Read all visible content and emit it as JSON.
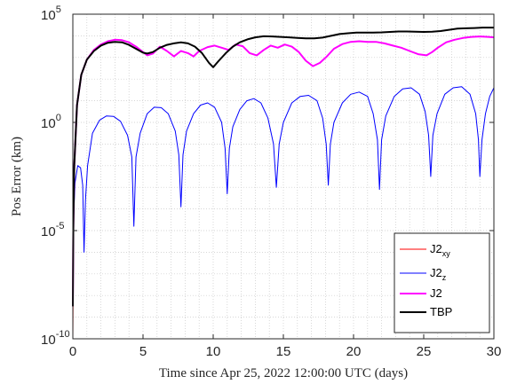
{
  "chart_data": {
    "type": "line",
    "xlabel": "Time since Apr 25, 2022 12:00:00 UTC (days)",
    "ylabel": "Pos Error (km)",
    "xlim": [
      0,
      30
    ],
    "ylim_exponents": [
      -10,
      5
    ],
    "yscale": "log",
    "x_ticks": [
      "0",
      "5",
      "10",
      "15",
      "20",
      "25",
      "30"
    ],
    "x_tick_values": [
      0,
      5,
      10,
      15,
      20,
      25,
      30
    ],
    "y_ticks": [
      {
        "base": "10",
        "exp": "-10",
        "value_exp": -10
      },
      {
        "base": "10",
        "exp": "-5",
        "value_exp": -5
      },
      {
        "base": "10",
        "exp": "0",
        "value_exp": 0
      },
      {
        "base": "10",
        "exp": "5",
        "value_exp": 5
      }
    ],
    "grid": "minor-dotted",
    "legend_position": "bottom-right",
    "series": [
      {
        "key": "j2xy",
        "name": "J2",
        "name_sub": "xy",
        "color": "#ff0000",
        "stroke": 1,
        "points": [
          [
            0.0,
            -10.0
          ],
          [
            0.01,
            -8.5
          ],
          [
            0.03,
            -7.2
          ]
        ]
      },
      {
        "key": "j2z",
        "name": "J2",
        "name_sub": "z",
        "color": "#0000ff",
        "stroke": 1,
        "points": [
          [
            0.0,
            -7.5
          ],
          [
            0.05,
            -4.5
          ],
          [
            0.15,
            -2.8
          ],
          [
            0.35,
            -2.0
          ],
          [
            0.55,
            -2.1
          ],
          [
            0.7,
            -2.9
          ],
          [
            0.8,
            -6.0
          ],
          [
            0.9,
            -3.6
          ],
          [
            1.05,
            -2.0
          ],
          [
            1.4,
            -0.5
          ],
          [
            1.9,
            0.1
          ],
          [
            2.4,
            0.3
          ],
          [
            2.9,
            0.28
          ],
          [
            3.4,
            0.05
          ],
          [
            3.9,
            -0.6
          ],
          [
            4.2,
            -1.6
          ],
          [
            4.35,
            -4.8
          ],
          [
            4.5,
            -1.6
          ],
          [
            4.8,
            -0.5
          ],
          [
            5.3,
            0.4
          ],
          [
            5.8,
            0.7
          ],
          [
            6.3,
            0.68
          ],
          [
            6.8,
            0.4
          ],
          [
            7.3,
            -0.4
          ],
          [
            7.55,
            -1.5
          ],
          [
            7.7,
            -3.9
          ],
          [
            7.85,
            -1.5
          ],
          [
            8.1,
            -0.4
          ],
          [
            8.6,
            0.4
          ],
          [
            9.1,
            0.8
          ],
          [
            9.6,
            0.9
          ],
          [
            10.1,
            0.7
          ],
          [
            10.6,
            0.0
          ],
          [
            10.85,
            -1.2
          ],
          [
            11.0,
            -3.3
          ],
          [
            11.15,
            -1.2
          ],
          [
            11.4,
            -0.2
          ],
          [
            11.9,
            0.6
          ],
          [
            12.4,
            1.0
          ],
          [
            12.9,
            1.1
          ],
          [
            13.4,
            0.9
          ],
          [
            13.9,
            0.2
          ],
          [
            14.3,
            -1.0
          ],
          [
            14.5,
            -3.0
          ],
          [
            14.7,
            -1.0
          ],
          [
            15.0,
            0.0
          ],
          [
            15.6,
            0.9
          ],
          [
            16.2,
            1.2
          ],
          [
            16.8,
            1.25
          ],
          [
            17.4,
            1.0
          ],
          [
            17.8,
            0.2
          ],
          [
            18.05,
            -1.0
          ],
          [
            18.2,
            -2.9
          ],
          [
            18.35,
            -1.0
          ],
          [
            18.6,
            0.0
          ],
          [
            19.2,
            0.9
          ],
          [
            19.8,
            1.3
          ],
          [
            20.4,
            1.4
          ],
          [
            21.0,
            1.2
          ],
          [
            21.4,
            0.4
          ],
          [
            21.7,
            -0.8
          ],
          [
            21.85,
            -3.1
          ],
          [
            22.0,
            -0.8
          ],
          [
            22.3,
            0.3
          ],
          [
            22.9,
            1.2
          ],
          [
            23.5,
            1.55
          ],
          [
            24.1,
            1.6
          ],
          [
            24.7,
            1.3
          ],
          [
            25.1,
            0.5
          ],
          [
            25.35,
            -0.6
          ],
          [
            25.5,
            -2.5
          ],
          [
            25.65,
            -0.6
          ],
          [
            25.95,
            0.4
          ],
          [
            26.5,
            1.3
          ],
          [
            27.1,
            1.6
          ],
          [
            27.7,
            1.65
          ],
          [
            28.3,
            1.3
          ],
          [
            28.7,
            0.4
          ],
          [
            28.9,
            -0.8
          ],
          [
            29.0,
            -2.5
          ],
          [
            29.15,
            -0.8
          ],
          [
            29.4,
            0.4
          ],
          [
            29.7,
            1.2
          ],
          [
            30.0,
            1.6
          ]
        ]
      },
      {
        "key": "j2",
        "name": "J2",
        "name_sub": "",
        "color": "#ff00ff",
        "stroke": 2,
        "points": [
          [
            0.0,
            -8.5
          ],
          [
            0.03,
            -5.0
          ],
          [
            0.1,
            -2.0
          ],
          [
            0.3,
            0.8
          ],
          [
            0.6,
            2.2
          ],
          [
            1.0,
            2.9
          ],
          [
            1.5,
            3.35
          ],
          [
            2.0,
            3.6
          ],
          [
            2.5,
            3.75
          ],
          [
            3.0,
            3.82
          ],
          [
            3.5,
            3.8
          ],
          [
            4.0,
            3.7
          ],
          [
            4.5,
            3.5
          ],
          [
            5.0,
            3.25
          ],
          [
            5.3,
            3.1
          ],
          [
            5.7,
            3.18
          ],
          [
            6.2,
            3.5
          ],
          [
            6.7,
            3.3
          ],
          [
            7.2,
            3.05
          ],
          [
            7.7,
            3.3
          ],
          [
            8.2,
            3.2
          ],
          [
            8.6,
            3.05
          ],
          [
            9.0,
            3.3
          ],
          [
            9.6,
            3.48
          ],
          [
            10.1,
            3.55
          ],
          [
            10.6,
            3.45
          ],
          [
            11.1,
            3.35
          ],
          [
            11.6,
            3.6
          ],
          [
            12.1,
            3.52
          ],
          [
            12.6,
            3.2
          ],
          [
            13.1,
            3.1
          ],
          [
            13.6,
            3.35
          ],
          [
            14.1,
            3.55
          ],
          [
            14.6,
            3.45
          ],
          [
            15.1,
            3.6
          ],
          [
            15.6,
            3.5
          ],
          [
            16.1,
            3.25
          ],
          [
            16.6,
            2.85
          ],
          [
            17.1,
            2.6
          ],
          [
            17.6,
            2.75
          ],
          [
            18.1,
            3.05
          ],
          [
            18.6,
            3.4
          ],
          [
            19.2,
            3.62
          ],
          [
            19.8,
            3.72
          ],
          [
            20.4,
            3.75
          ],
          [
            21.0,
            3.72
          ],
          [
            21.6,
            3.72
          ],
          [
            22.2,
            3.65
          ],
          [
            22.8,
            3.55
          ],
          [
            23.4,
            3.45
          ],
          [
            24.0,
            3.3
          ],
          [
            24.6,
            3.15
          ],
          [
            25.2,
            3.1
          ],
          [
            25.6,
            3.25
          ],
          [
            26.0,
            3.45
          ],
          [
            26.6,
            3.7
          ],
          [
            27.2,
            3.82
          ],
          [
            27.8,
            3.9
          ],
          [
            28.4,
            3.95
          ],
          [
            29.0,
            3.97
          ],
          [
            29.6,
            3.95
          ],
          [
            30.0,
            3.93
          ]
        ]
      },
      {
        "key": "tbp",
        "name": "TBP",
        "name_sub": "",
        "color": "#000000",
        "stroke": 2,
        "points": [
          [
            0.0,
            -8.5
          ],
          [
            0.03,
            -5.0
          ],
          [
            0.1,
            -2.0
          ],
          [
            0.3,
            0.8
          ],
          [
            0.6,
            2.2
          ],
          [
            1.0,
            2.9
          ],
          [
            1.5,
            3.3
          ],
          [
            2.0,
            3.55
          ],
          [
            2.5,
            3.68
          ],
          [
            3.0,
            3.72
          ],
          [
            3.5,
            3.7
          ],
          [
            4.0,
            3.58
          ],
          [
            4.5,
            3.4
          ],
          [
            5.0,
            3.22
          ],
          [
            5.3,
            3.18
          ],
          [
            5.7,
            3.25
          ],
          [
            6.2,
            3.45
          ],
          [
            6.7,
            3.58
          ],
          [
            7.2,
            3.65
          ],
          [
            7.7,
            3.7
          ],
          [
            8.2,
            3.65
          ],
          [
            8.7,
            3.5
          ],
          [
            9.2,
            3.2
          ],
          [
            9.7,
            2.75
          ],
          [
            10.0,
            2.55
          ],
          [
            10.4,
            2.85
          ],
          [
            10.9,
            3.2
          ],
          [
            11.4,
            3.5
          ],
          [
            11.9,
            3.7
          ],
          [
            12.5,
            3.85
          ],
          [
            13.0,
            3.93
          ],
          [
            13.6,
            3.98
          ],
          [
            14.2,
            3.97
          ],
          [
            14.8,
            3.95
          ],
          [
            15.4,
            3.93
          ],
          [
            16.0,
            3.9
          ],
          [
            16.6,
            3.88
          ],
          [
            17.2,
            3.88
          ],
          [
            17.8,
            3.92
          ],
          [
            18.4,
            4.0
          ],
          [
            19.0,
            4.08
          ],
          [
            19.6,
            4.12
          ],
          [
            20.2,
            4.15
          ],
          [
            20.8,
            4.15
          ],
          [
            21.4,
            4.15
          ],
          [
            22.0,
            4.16
          ],
          [
            22.6,
            4.18
          ],
          [
            23.2,
            4.2
          ],
          [
            23.8,
            4.2
          ],
          [
            24.4,
            4.19
          ],
          [
            25.0,
            4.18
          ],
          [
            25.6,
            4.19
          ],
          [
            26.2,
            4.22
          ],
          [
            26.8,
            4.28
          ],
          [
            27.4,
            4.33
          ],
          [
            28.0,
            4.35
          ],
          [
            28.6,
            4.36
          ],
          [
            29.2,
            4.38
          ],
          [
            30.0,
            4.38
          ]
        ]
      }
    ]
  }
}
